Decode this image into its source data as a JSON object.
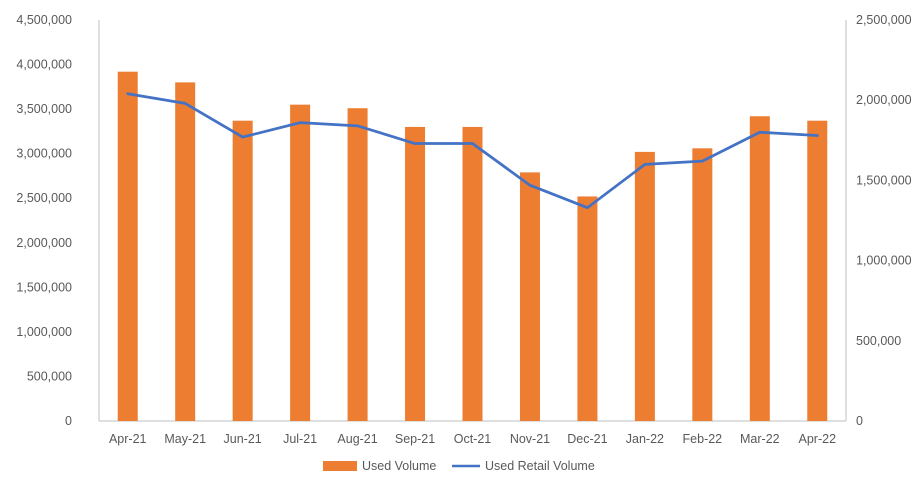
{
  "chart_data": {
    "type": "bar",
    "categories": [
      "Apr-21",
      "May-21",
      "Jun-21",
      "Jul-21",
      "Aug-21",
      "Sep-21",
      "Oct-21",
      "Nov-21",
      "Dec-21",
      "Jan-22",
      "Feb-22",
      "Mar-22",
      "Apr-22"
    ],
    "series": [
      {
        "name": "Used Volume",
        "type": "bar",
        "axis": "left",
        "color": "#ED7D31",
        "values": [
          3920000,
          3800000,
          3370000,
          3550000,
          3510000,
          3300000,
          3300000,
          2790000,
          2520000,
          3020000,
          3060000,
          3420000,
          3370000
        ]
      },
      {
        "name": "Used Retail Volume",
        "type": "line",
        "axis": "right",
        "color": "#4472C4",
        "values": [
          2040000,
          1980000,
          1770000,
          1860000,
          1840000,
          1730000,
          1730000,
          1470000,
          1330000,
          1600000,
          1620000,
          1800000,
          1780000
        ]
      }
    ],
    "y_left": {
      "min": 0,
      "max": 4500000,
      "step": 500000,
      "tick_labels": [
        "0",
        "500,000",
        "1,000,000",
        "1,500,000",
        "2,000,000",
        "2,500,000",
        "3,000,000",
        "3,500,000",
        "4,000,000",
        "4,500,000"
      ]
    },
    "y_right": {
      "min": 0,
      "max": 2500000,
      "step": 500000,
      "tick_labels": [
        "0",
        "500,000",
        "1,000,000",
        "1,500,000",
        "2,000,000",
        "2,500,000"
      ]
    },
    "title": "",
    "xlabel": "",
    "ylabel": "",
    "grid": false,
    "legend_position": "bottom"
  }
}
